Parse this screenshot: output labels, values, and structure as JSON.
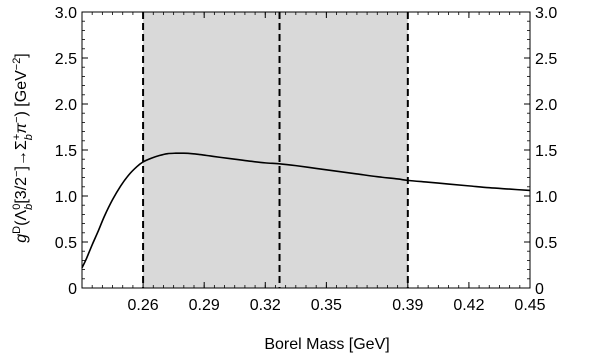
{
  "chart_data": {
    "type": "line",
    "title": "",
    "xlabel": "Borel Mass [GeV]",
    "ylabel_parts": {
      "g": "g",
      "sup_D": "D",
      "open": "(",
      "Lambda": "Λ",
      "sub_b1": "b",
      "sup_0": "0",
      "bracket_open": "[3/2",
      "sup_minus": "−",
      "arrow": "]→Σ",
      "sub_b2": "b",
      "sup_plus": "+",
      "pi": "π",
      "sup_pi": "−",
      "close_unit": ") [GeV",
      "sup_unit": "−2",
      "close_bracket": "]"
    },
    "xlim": [
      0.23,
      0.45
    ],
    "ylim": [
      0,
      3.0
    ],
    "x_ticks": [
      {
        "value": 0.26,
        "label": "0.26"
      },
      {
        "value": 0.29,
        "label": "0.29"
      },
      {
        "value": 0.32,
        "label": "0.32"
      },
      {
        "value": 0.35,
        "label": "0.35"
      },
      {
        "value": 0.39,
        "label": "0.39"
      },
      {
        "value": 0.42,
        "label": "0.42"
      },
      {
        "value": 0.45,
        "label": "0.45"
      }
    ],
    "y_ticks_left": [
      {
        "value": 0,
        "label": "0"
      },
      {
        "value": 0.5,
        "label": "0.5"
      },
      {
        "value": 1.0,
        "label": "1.0"
      },
      {
        "value": 1.5,
        "label": "1.5"
      },
      {
        "value": 2.0,
        "label": "2.0"
      },
      {
        "value": 2.5,
        "label": "2.5"
      },
      {
        "value": 3.0,
        "label": "3.0"
      }
    ],
    "y_ticks_right": [
      {
        "value": 0,
        "label": "0"
      },
      {
        "value": 0.5,
        "label": "0.5"
      },
      {
        "value": 1.0,
        "label": "1.0"
      },
      {
        "value": 1.5,
        "label": "1.5"
      },
      {
        "value": 2.0,
        "label": "2.0"
      },
      {
        "value": 2.5,
        "label": "2.5"
      },
      {
        "value": 3.0,
        "label": "3.0"
      }
    ],
    "shaded_region": {
      "x_from": 0.26,
      "x_to": 0.39,
      "color": "#d9d9d9"
    },
    "dashed_lines": [
      0.26,
      0.327,
      0.39
    ],
    "series": [
      {
        "color": "#000000",
        "x": [
          0.23,
          0.232,
          0.235,
          0.238,
          0.241,
          0.245,
          0.249,
          0.253,
          0.257,
          0.26,
          0.264,
          0.268,
          0.272,
          0.276,
          0.28,
          0.284,
          0.288,
          0.293,
          0.298,
          0.305,
          0.312,
          0.32,
          0.327,
          0.335,
          0.345,
          0.355,
          0.365,
          0.375,
          0.385,
          0.39,
          0.4,
          0.41,
          0.42,
          0.43,
          0.44,
          0.45
        ],
        "y": [
          0.22,
          0.31,
          0.47,
          0.62,
          0.78,
          0.96,
          1.11,
          1.23,
          1.32,
          1.37,
          1.41,
          1.44,
          1.46,
          1.465,
          1.465,
          1.46,
          1.45,
          1.435,
          1.42,
          1.4,
          1.38,
          1.36,
          1.35,
          1.33,
          1.3,
          1.27,
          1.24,
          1.21,
          1.185,
          1.17,
          1.15,
          1.13,
          1.11,
          1.09,
          1.075,
          1.06
        ]
      }
    ]
  }
}
